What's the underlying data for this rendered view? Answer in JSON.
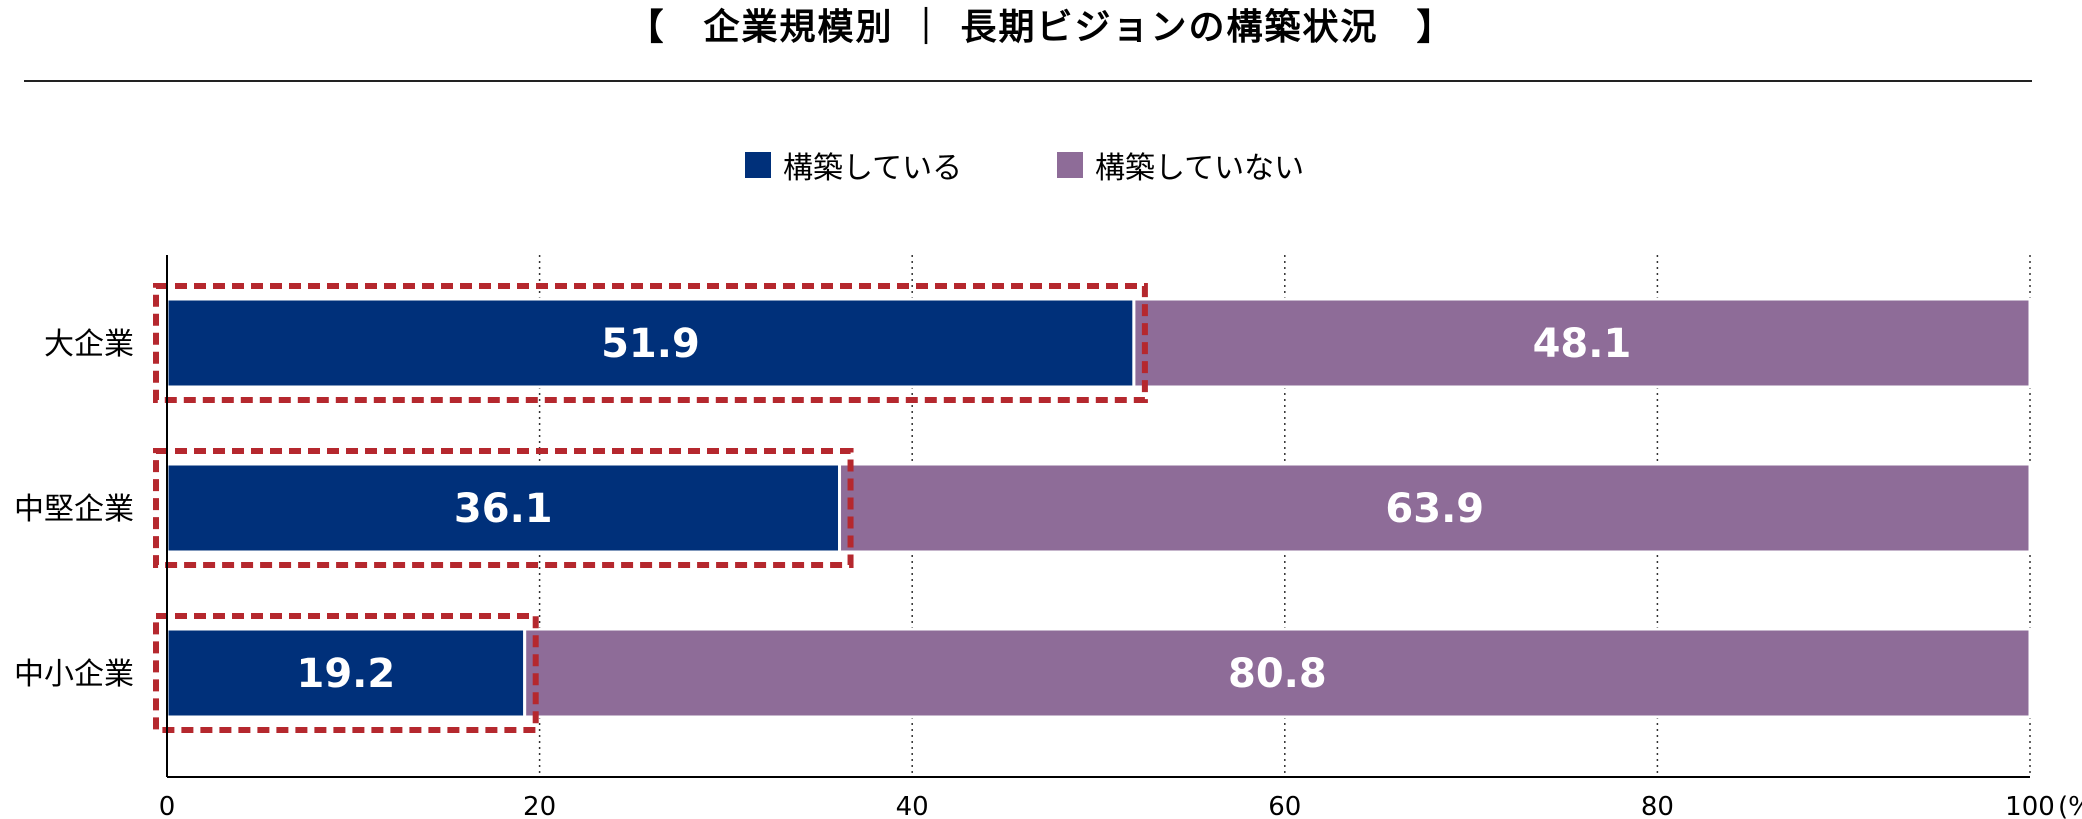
{
  "title": "【　企業規模別 ｜ 長期ビジョンの構築状況　】",
  "chart_data": {
    "type": "bar",
    "orientation": "horizontal",
    "stacked": true,
    "categories": [
      "大企業",
      "中堅企業",
      "中小企業"
    ],
    "series": [
      {
        "name": "構築している",
        "color": "#00307a",
        "values": [
          51.9,
          36.1,
          19.2
        ]
      },
      {
        "name": "構築していない",
        "color": "#8e6c98",
        "values": [
          48.1,
          63.9,
          80.8
        ]
      }
    ],
    "xlim": [
      0,
      100
    ],
    "xticks": [
      0,
      20,
      40,
      60,
      80,
      100
    ],
    "tick_labels": [
      "0",
      "20",
      "40",
      "60",
      "80",
      "100"
    ],
    "unit_label": "(%)",
    "grid": "vertical-dotted",
    "legend_position": "top-center",
    "highlight_color": "#b5282e",
    "highlight_series": "構築している"
  }
}
